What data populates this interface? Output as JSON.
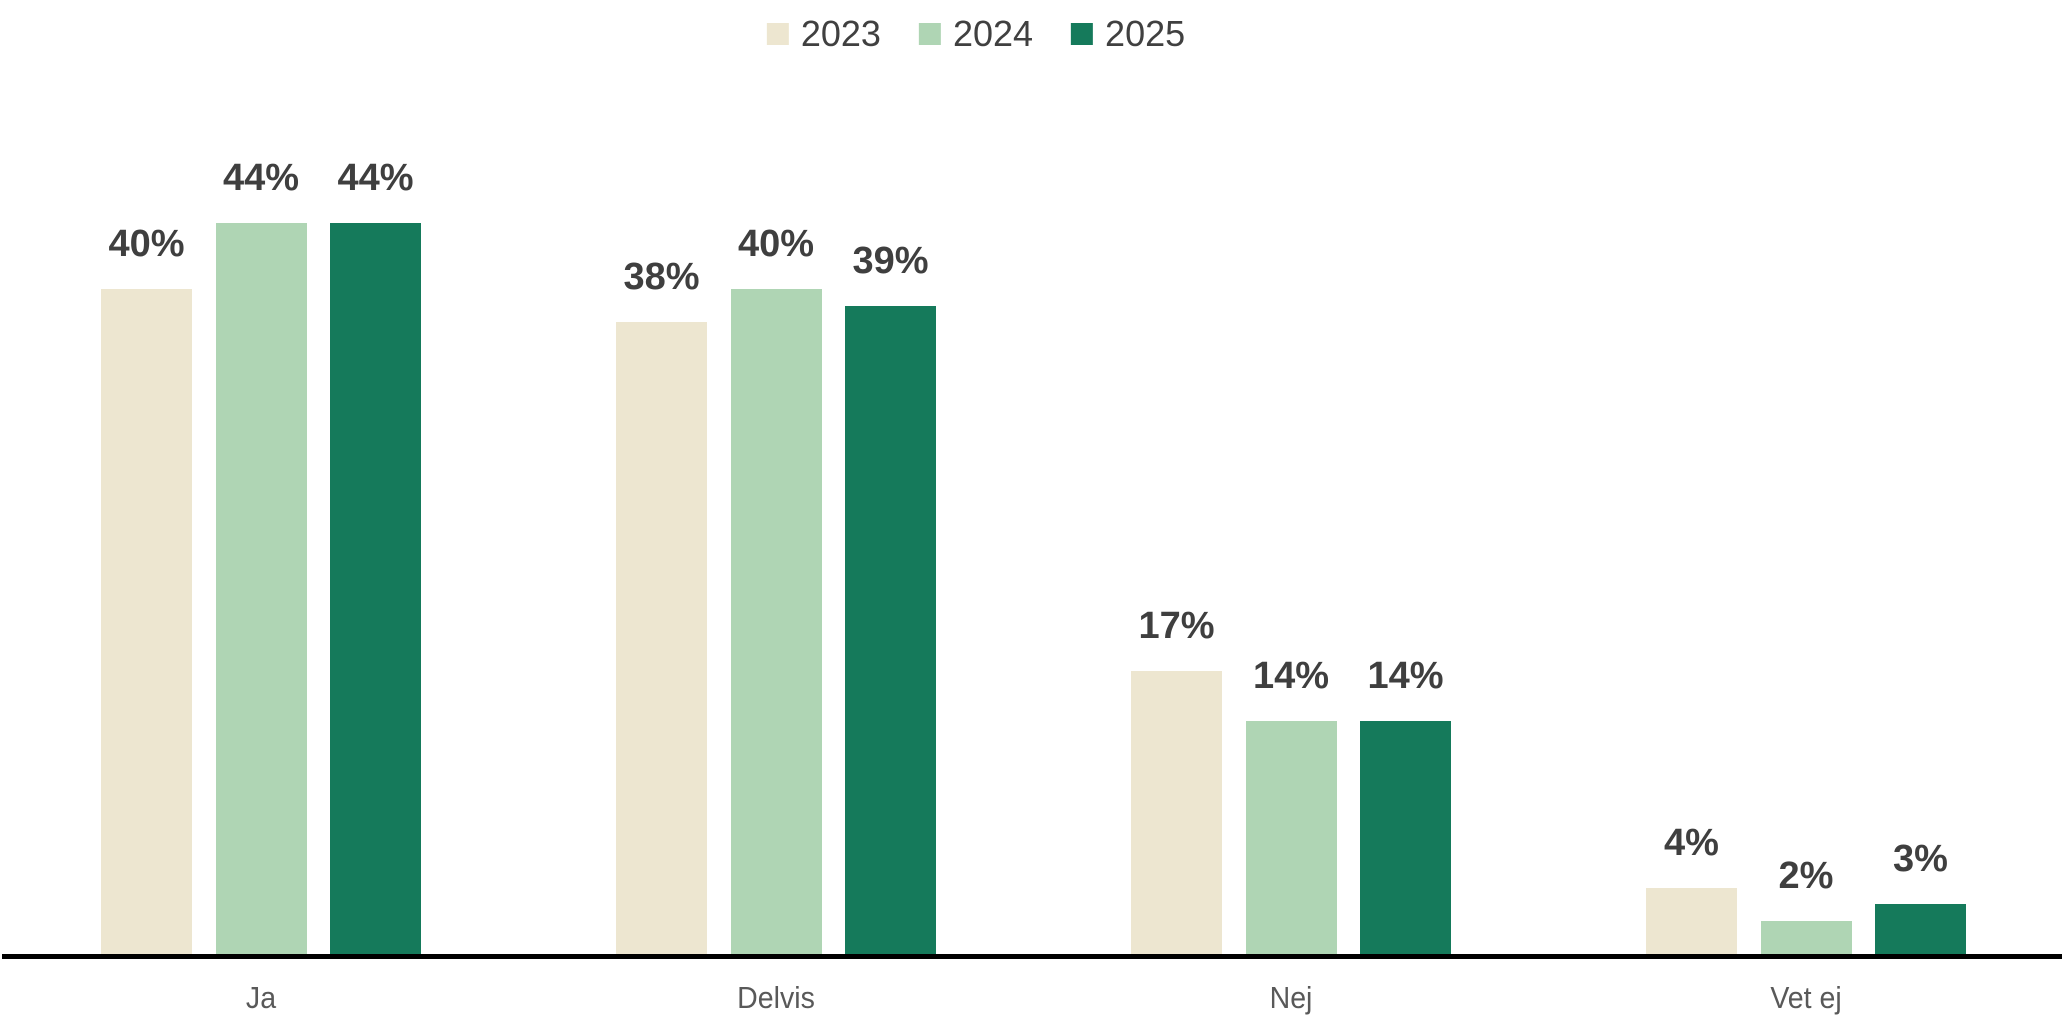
{
  "chart_data": {
    "type": "bar",
    "title": "",
    "categories": [
      "Ja",
      "Delvis",
      "Nej",
      "Vet ej"
    ],
    "series": [
      {
        "name": "2023",
        "color": "#EDE6D0",
        "values": [
          40,
          38,
          17,
          4
        ],
        "value_labels": [
          "40%",
          "38%",
          "17%",
          "4%"
        ]
      },
      {
        "name": "2024",
        "color": "#AFD5B4",
        "values": [
          44,
          40,
          14,
          2
        ],
        "value_labels": [
          "44%",
          "40%",
          "14%",
          "2%"
        ]
      },
      {
        "name": "2025",
        "color": "#157A5B",
        "values": [
          44,
          39,
          14,
          3
        ],
        "value_labels": [
          "44%",
          "39%",
          "14%",
          "3%"
        ]
      }
    ],
    "xlabel": "",
    "ylabel": "",
    "ylim": [
      0,
      50
    ],
    "unit": "%",
    "y_axis_visible": false,
    "grid": false,
    "legend_position": "top-center",
    "colors": {
      "axis_line": "#000000",
      "value_label": "#3F3F3F",
      "category_label": "#595959",
      "legend_label": "#404040",
      "background": "#FFFFFF"
    }
  }
}
